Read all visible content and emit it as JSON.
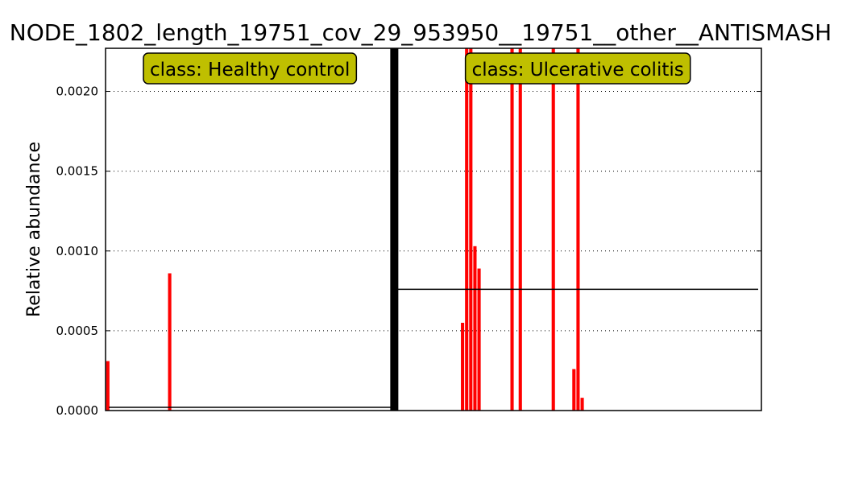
{
  "chart_data": {
    "type": "bar",
    "title": "NODE_1802_length_19751_cov_29_953950__19751__other__ANTISMASH",
    "xlabel": "",
    "ylabel": "Relative abundance",
    "ylim": [
      0,
      0.00227
    ],
    "yticks": [
      "0.0000",
      "0.0005",
      "0.0010",
      "0.0015",
      "0.0020"
    ],
    "grid": "horizontal-dotted",
    "bar_color": "#ff0000",
    "mean_line_color": "#000000",
    "divider_color": "#000000",
    "groups": [
      {
        "label": "class: Healthy control",
        "box_color": "#bfbf00",
        "sample_count": 70,
        "mean": 2e-05,
        "values": [
          0.00031,
          0,
          0,
          0,
          0,
          0,
          0,
          0,
          0,
          0,
          0,
          0,
          0,
          0,
          0,
          0.00086,
          0,
          0,
          0,
          0,
          0,
          0,
          0,
          0,
          0,
          0,
          0,
          0,
          0,
          0,
          0,
          0,
          0,
          0,
          0,
          0,
          0,
          0,
          0,
          0,
          0,
          0,
          0,
          0,
          0,
          0,
          0,
          0,
          0,
          0,
          0,
          0,
          0,
          0,
          0,
          0,
          0,
          0,
          0,
          0,
          0,
          0,
          0,
          0,
          0,
          0,
          0,
          0,
          0,
          0
        ]
      },
      {
        "label": "class: Ulcerative colitis",
        "box_color": "#bfbf00",
        "sample_count": 89,
        "mean": 0.00076,
        "values": [
          0,
          0,
          0,
          0,
          0,
          0,
          0,
          0,
          0,
          0,
          0,
          0,
          0,
          0,
          0,
          0,
          0.00055,
          0.0023,
          0.0023,
          0.00103,
          0.00089,
          0,
          0,
          0,
          0,
          0,
          0,
          0,
          0.0023,
          0,
          0.0023,
          0,
          0,
          0,
          0,
          0,
          0,
          0,
          0.0023,
          0,
          0,
          0,
          0,
          0.00026,
          0.0023,
          8e-05,
          0,
          0,
          0,
          0,
          0,
          0,
          0,
          0,
          0,
          0,
          0,
          0,
          0,
          0,
          0,
          0,
          0,
          0,
          0,
          0,
          0,
          0,
          0,
          0,
          0,
          0,
          0,
          0,
          0,
          0,
          0,
          0,
          0,
          0,
          0,
          0,
          0,
          0,
          0,
          0,
          0,
          0,
          0
        ]
      }
    ]
  }
}
